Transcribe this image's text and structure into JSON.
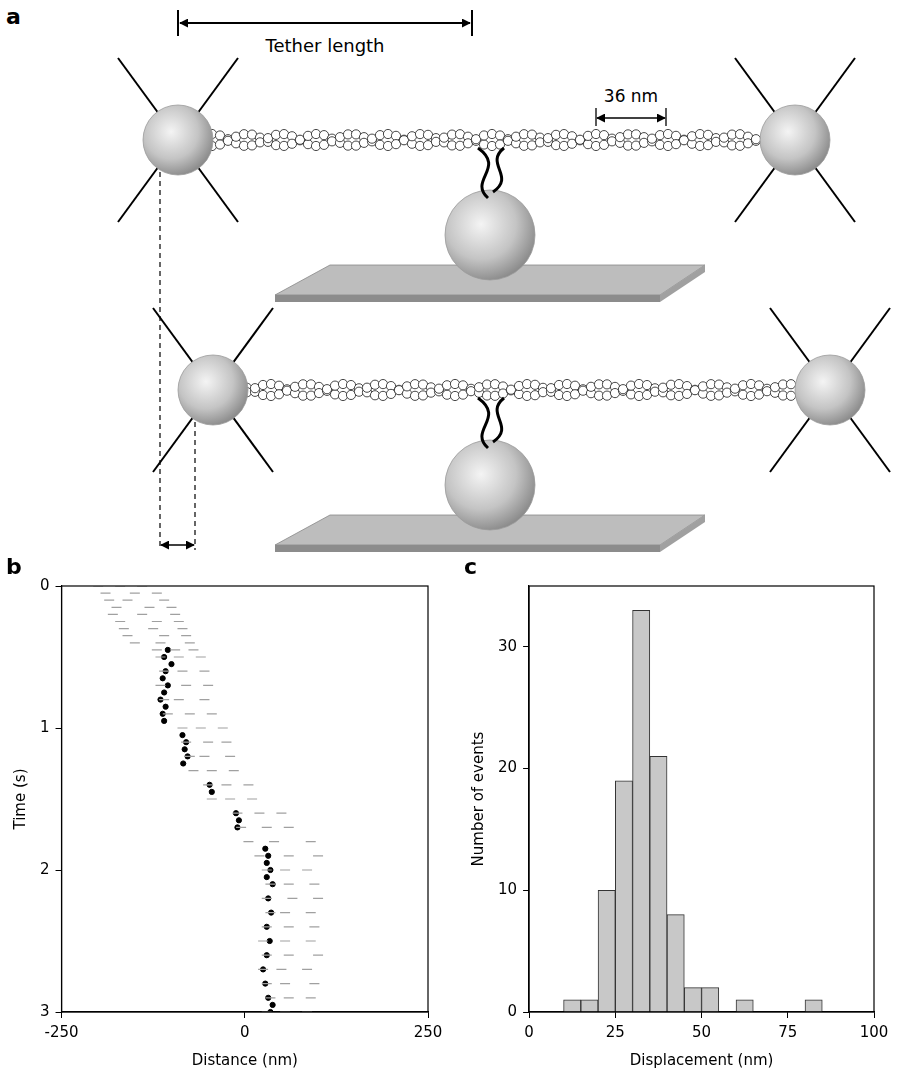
{
  "diagram": {
    "letter": "a",
    "tether_length": "Tether length",
    "period": "36 nm"
  },
  "chart_data": [
    {
      "type": "scatter",
      "title": "b",
      "x_label": "Distance (nm)",
      "y_label": "Time (s)",
      "xlim": [
        -250,
        250
      ],
      "xticks": [
        -250,
        0,
        250
      ],
      "ylim": [
        0,
        3
      ],
      "yticks": [
        0,
        1,
        2,
        3
      ],
      "grid": false,
      "series": [
        {
          "color": "#a0a0a0",
          "marker": "line",
          "points": [
            [
              -200,
              0
            ],
            [
              -170,
              0
            ],
            [
              -140,
              0
            ],
            [
              -190,
              0.05
            ],
            [
              -150,
              0.05
            ],
            [
              -120,
              0.05
            ],
            [
              -185,
              0.1
            ],
            [
              -160,
              0.1
            ],
            [
              -110,
              0.1
            ],
            [
              -175,
              0.15
            ],
            [
              -130,
              0.15
            ],
            [
              -100,
              0.15
            ],
            [
              -180,
              0.2
            ],
            [
              -140,
              0.2
            ],
            [
              -95,
              0.2
            ],
            [
              -170,
              0.25
            ],
            [
              -120,
              0.25
            ],
            [
              -90,
              0.25
            ],
            [
              -165,
              0.3
            ],
            [
              -125,
              0.3
            ],
            [
              -85,
              0.3
            ],
            [
              -160,
              0.35
            ],
            [
              -110,
              0.35
            ],
            [
              -80,
              0.35
            ],
            [
              -150,
              0.4
            ],
            [
              -115,
              0.4
            ],
            [
              -75,
              0.4
            ],
            [
              -120,
              0.45
            ],
            [
              -95,
              0.45
            ],
            [
              -70,
              0.45
            ],
            [
              -115,
              0.5
            ],
            [
              -90,
              0.5
            ],
            [
              -60,
              0.5
            ],
            [
              -110,
              0.6
            ],
            [
              -85,
              0.6
            ],
            [
              -55,
              0.6
            ],
            [
              -115,
              0.7
            ],
            [
              -80,
              0.7
            ],
            [
              -50,
              0.7
            ],
            [
              -110,
              0.8
            ],
            [
              -90,
              0.8
            ],
            [
              -55,
              0.8
            ],
            [
              -105,
              0.9
            ],
            [
              -75,
              0.9
            ],
            [
              -45,
              0.9
            ],
            [
              -85,
              1.0
            ],
            [
              -60,
              1.0
            ],
            [
              -30,
              1.0
            ],
            [
              -80,
              1.1
            ],
            [
              -50,
              1.1
            ],
            [
              -25,
              1.1
            ],
            [
              -75,
              1.2
            ],
            [
              -55,
              1.2
            ],
            [
              -20,
              1.2
            ],
            [
              -70,
              1.3
            ],
            [
              -45,
              1.3
            ],
            [
              -15,
              1.3
            ],
            [
              -50,
              1.4
            ],
            [
              -25,
              1.4
            ],
            [
              5,
              1.4
            ],
            [
              -45,
              1.5
            ],
            [
              -20,
              1.5
            ],
            [
              10,
              1.5
            ],
            [
              -10,
              1.6
            ],
            [
              20,
              1.6
            ],
            [
              50,
              1.6
            ],
            [
              -5,
              1.7
            ],
            [
              30,
              1.7
            ],
            [
              60,
              1.7
            ],
            [
              5,
              1.8
            ],
            [
              40,
              1.8
            ],
            [
              90,
              1.8
            ],
            [
              20,
              1.9
            ],
            [
              60,
              1.9
            ],
            [
              100,
              1.9
            ],
            [
              30,
              2.0
            ],
            [
              55,
              2.0
            ],
            [
              85,
              2.0
            ],
            [
              35,
              2.1
            ],
            [
              60,
              2.1
            ],
            [
              95,
              2.1
            ],
            [
              30,
              2.2
            ],
            [
              65,
              2.2
            ],
            [
              100,
              2.2
            ],
            [
              35,
              2.3
            ],
            [
              55,
              2.3
            ],
            [
              90,
              2.3
            ],
            [
              30,
              2.4
            ],
            [
              60,
              2.4
            ],
            [
              95,
              2.4
            ],
            [
              25,
              2.5
            ],
            [
              55,
              2.5
            ],
            [
              90,
              2.5
            ],
            [
              30,
              2.6
            ],
            [
              60,
              2.6
            ],
            [
              100,
              2.6
            ],
            [
              25,
              2.7
            ],
            [
              50,
              2.7
            ],
            [
              85,
              2.7
            ],
            [
              30,
              2.8
            ],
            [
              55,
              2.8
            ],
            [
              95,
              2.8
            ],
            [
              35,
              2.9
            ],
            [
              60,
              2.9
            ],
            [
              90,
              2.9
            ],
            [
              30,
              3.0
            ],
            [
              55,
              3.0
            ],
            [
              85,
              3.0
            ]
          ]
        },
        {
          "color": "#000000",
          "marker": "circle",
          "points": [
            [
              -105,
              0.45
            ],
            [
              -110,
              0.5
            ],
            [
              -100,
              0.55
            ],
            [
              -108,
              0.6
            ],
            [
              -112,
              0.65
            ],
            [
              -105,
              0.7
            ],
            [
              -110,
              0.75
            ],
            [
              -115,
              0.8
            ],
            [
              -108,
              0.85
            ],
            [
              -112,
              0.9
            ],
            [
              -110,
              0.95
            ],
            [
              -85,
              1.05
            ],
            [
              -80,
              1.1
            ],
            [
              -82,
              1.15
            ],
            [
              -78,
              1.2
            ],
            [
              -84,
              1.25
            ],
            [
              -48,
              1.4
            ],
            [
              -45,
              1.45
            ],
            [
              -12,
              1.6
            ],
            [
              -8,
              1.65
            ],
            [
              -10,
              1.7
            ],
            [
              28,
              1.85
            ],
            [
              32,
              1.9
            ],
            [
              30,
              1.95
            ],
            [
              35,
              2.0
            ],
            [
              30,
              2.05
            ],
            [
              38,
              2.1
            ],
            [
              32,
              2.2
            ],
            [
              36,
              2.3
            ],
            [
              30,
              2.4
            ],
            [
              34,
              2.5
            ],
            [
              30,
              2.6
            ],
            [
              25,
              2.7
            ],
            [
              28,
              2.8
            ],
            [
              32,
              2.9
            ],
            [
              38,
              2.95
            ],
            [
              35,
              3.0
            ]
          ]
        }
      ]
    },
    {
      "type": "histogram",
      "title": "c",
      "x_label": "Displacement (nm)",
      "y_label": "Number of events",
      "bins": [
        10,
        15,
        20,
        25,
        30,
        35,
        40,
        45,
        50,
        55,
        60,
        65,
        70,
        75,
        80,
        85
      ],
      "counts": [
        1,
        1,
        10,
        19,
        33,
        21,
        8,
        2,
        2,
        0,
        1,
        0,
        0,
        0,
        1
      ],
      "color": "#c8c8c8",
      "xlim": [
        0,
        100
      ],
      "xticks": [
        0,
        25,
        50,
        75,
        100
      ],
      "ylim": [
        0,
        35
      ],
      "yticks": [
        0,
        10,
        20,
        30
      ],
      "grid": false
    }
  ]
}
